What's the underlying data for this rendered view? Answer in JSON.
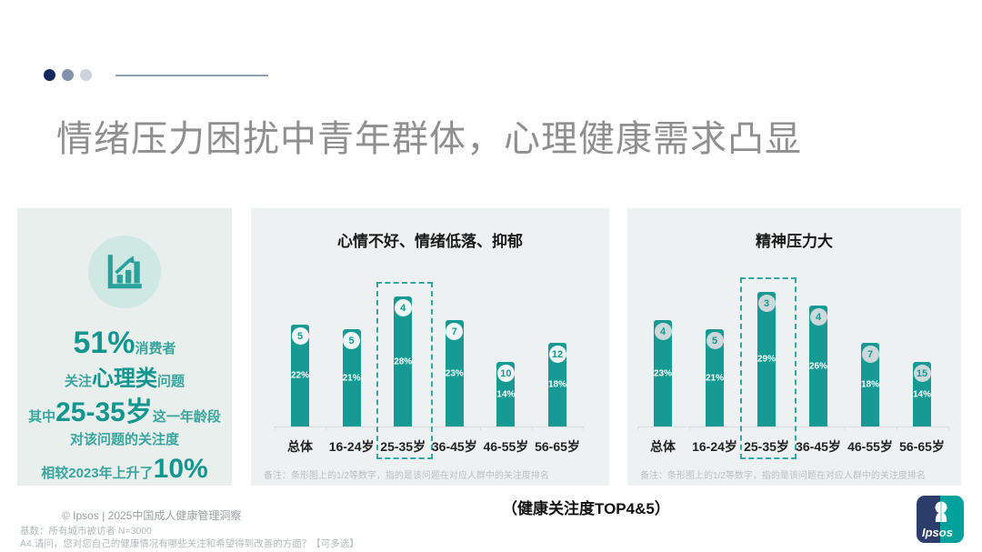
{
  "colors": {
    "teal": "#179a94",
    "panel_bg": "#eef1f1",
    "left_panel_bg": "#e9efed",
    "title_gray": "#8f8f8f",
    "icon_circle": "#cfe8e3",
    "rank_circle_mid": "#eff4f4",
    "rank_circle_right": "#ccd8d9",
    "dashed": "#2fa8a4",
    "dot1": "#16295d",
    "dot2": "#8093ad",
    "dot3": "#ccd3dd"
  },
  "header": {
    "title": "情绪压力困扰中青年群体，心理健康需求凸显",
    "dots": [
      "#16295d",
      "#8093ad",
      "#ccd3dd"
    ]
  },
  "highlight_panel": {
    "icon": "bar-chart-growth-icon",
    "stat_lines": [
      {
        "segments": [
          {
            "t": "51%",
            "s": "xl"
          },
          {
            "t": " 消费者",
            "s": "rg"
          }
        ]
      },
      {
        "segments": [
          {
            "t": "关注",
            "s": "rg"
          },
          {
            "t": "心理类",
            "s": "lg"
          },
          {
            "t": "问题",
            "s": "rg"
          }
        ]
      },
      {
        "segments": [
          {
            "t": "其中",
            "s": "rg"
          },
          {
            "t": "25-35岁",
            "s": "xl2"
          },
          {
            "t": "这一年龄段",
            "s": "rg"
          }
        ]
      },
      {
        "segments": [
          {
            "t": "对该问题的关注度",
            "s": "rg"
          }
        ]
      },
      {
        "segments": [
          {
            "t": "相较2023年上升了",
            "s": "rg"
          },
          {
            "t": "10%",
            "s": "xl2"
          }
        ]
      }
    ]
  },
  "chart_data": [
    {
      "type": "bar",
      "title": "心情不好、情绪低落、抑郁",
      "categories": [
        "总体",
        "16-24岁",
        "25-35岁",
        "36-45岁",
        "46-55岁",
        "56-65岁"
      ],
      "values": [
        22,
        21,
        28,
        23,
        14,
        18
      ],
      "value_suffix": "%",
      "rank_labels": [
        "5",
        "5",
        "4",
        "7",
        "10",
        "12"
      ],
      "highlight_category": "25-35岁",
      "note": "备注：条形图上的1/2等数字，指的是该问题在对应人群中的关注度排名",
      "ylim": [
        0,
        47
      ],
      "grid": false,
      "legend": "none"
    },
    {
      "type": "bar",
      "title": "精神压力大",
      "categories": [
        "总体",
        "16-24岁",
        "25-35岁",
        "36-45岁",
        "46-55岁",
        "56-65岁"
      ],
      "values": [
        23,
        21,
        29,
        26,
        18,
        14
      ],
      "value_suffix": "%",
      "rank_labels": [
        "4",
        "5",
        "3",
        "4",
        "7",
        "15"
      ],
      "highlight_category": "25-35岁",
      "note": "备注：条形图上的1/2等数字，指的是该问题在对应人群中的关注度排名",
      "ylim": [
        0,
        47
      ],
      "grid": false,
      "legend": "none"
    }
  ],
  "footer": {
    "copyright": "© Ipsos | 2025中国成人健康管理洞察",
    "base_note": "基数：所有城市被访者 N=3000",
    "question_note": "A4.请问，您对您自己的健康情况有哪些关注和希望得到改善的方面？【可多选】",
    "center_label": "（健康关注度TOP4&5）",
    "logo_text": "Ipsos"
  }
}
